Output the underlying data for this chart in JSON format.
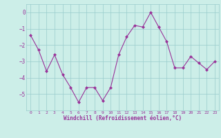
{
  "x": [
    0,
    1,
    2,
    3,
    4,
    5,
    6,
    7,
    8,
    9,
    10,
    11,
    12,
    13,
    14,
    15,
    16,
    17,
    18,
    19,
    20,
    21,
    22,
    23
  ],
  "y": [
    -1.4,
    -2.3,
    -3.6,
    -2.6,
    -3.8,
    -4.6,
    -5.5,
    -4.6,
    -4.6,
    -5.4,
    -4.6,
    -2.6,
    -1.5,
    -0.8,
    -0.9,
    0.0,
    -0.9,
    -1.8,
    -3.4,
    -3.4,
    -2.7,
    -3.1,
    -3.5,
    -3.0
  ],
  "line_color": "#993399",
  "marker": "D",
  "marker_size": 2.0,
  "bg_color": "#cceee8",
  "grid_color": "#99cccc",
  "xlabel": "Windchill (Refroidissement éolien,°C)",
  "xlabel_color": "#993399",
  "tick_color": "#993399",
  "label_color": "#993399",
  "xlim": [
    -0.5,
    23.5
  ],
  "ylim": [
    -6.0,
    0.5
  ],
  "yticks": [
    0,
    -1,
    -2,
    -3,
    -4,
    -5
  ],
  "xticks": [
    0,
    1,
    2,
    3,
    4,
    5,
    6,
    7,
    8,
    9,
    10,
    11,
    12,
    13,
    14,
    15,
    16,
    17,
    18,
    19,
    20,
    21,
    22,
    23
  ],
  "figsize": [
    3.2,
    2.0
  ],
  "dpi": 100
}
